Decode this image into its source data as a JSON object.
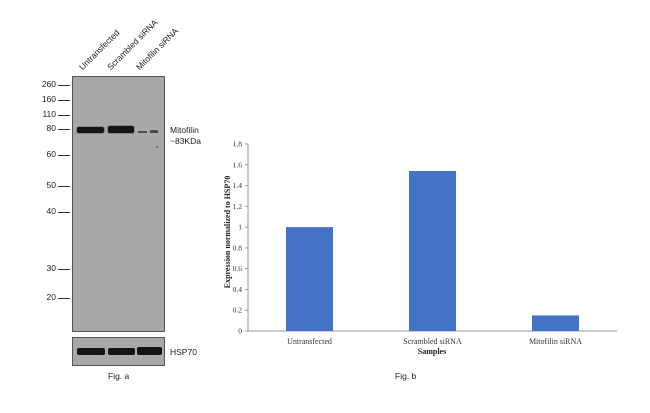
{
  "fig_a": {
    "lanes": [
      "Untransfected",
      "Scrambled siRNA",
      "Mitofilin siRNA"
    ],
    "mw_markers": [
      "260",
      "160",
      "110",
      "80",
      "60",
      "50",
      "40",
      "30",
      "20"
    ],
    "target_label": [
      "Mitofilin",
      "~83KDa"
    ],
    "loading_control_label": "HSP70",
    "caption": "Fig. a"
  },
  "fig_b": {
    "caption": "Fig. b"
  },
  "chart_data": {
    "type": "bar",
    "categories": [
      "Untransfected",
      "Scrambled siRNA",
      "Mitofilin siRNA"
    ],
    "values": [
      1.0,
      1.54,
      0.15
    ],
    "ylabel": "Expression normalized to HSP70",
    "xlabel": "Samples",
    "ylim": [
      0,
      1.8
    ],
    "yticks": [
      "0",
      "0.2",
      "0.4",
      "0.6",
      "0.8",
      "1",
      "1.2",
      "1.4",
      "1.6",
      "1.8"
    ],
    "bar_color": "#4472c4",
    "grid": false
  }
}
